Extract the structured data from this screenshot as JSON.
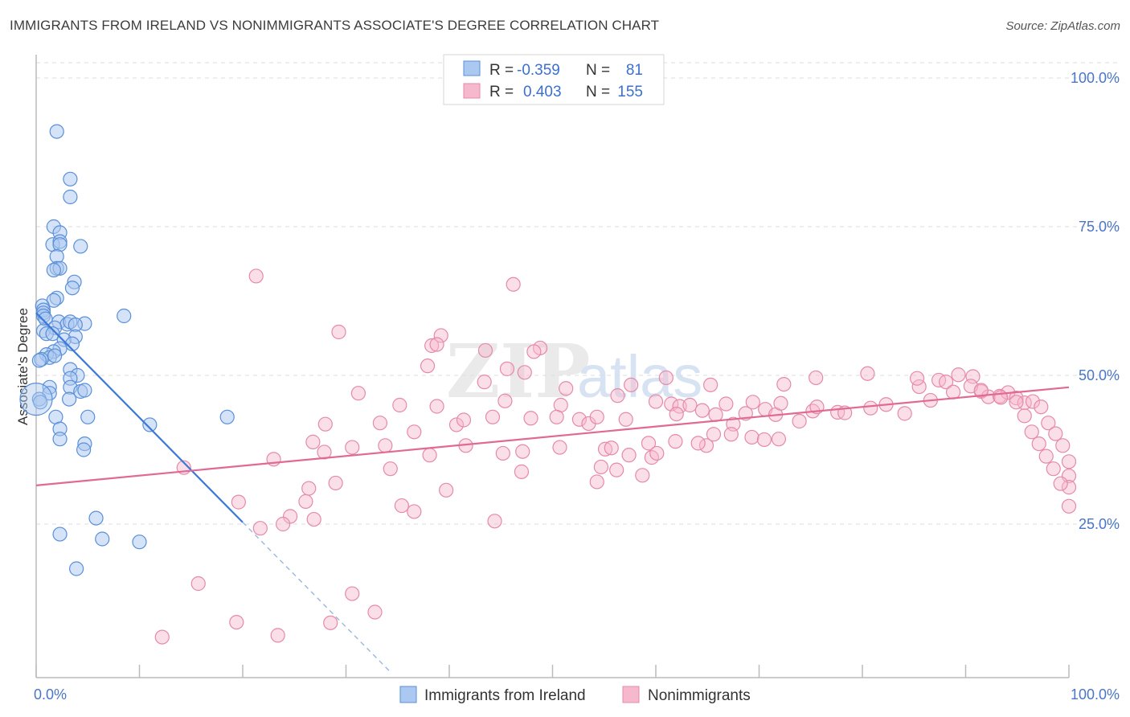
{
  "header": {
    "title": "IMMIGRANTS FROM IRELAND VS NONIMMIGRANTS ASSOCIATE'S DEGREE CORRELATION CHART",
    "source": "Source: ZipAtlas.com"
  },
  "watermark": {
    "zip": "ZIP",
    "atlas": "atlas"
  },
  "colors": {
    "blue_fill": "#aac8f0",
    "blue_stroke": "#5a8fd8",
    "blue_line": "#3b78d8",
    "pink_fill": "#f6b8cc",
    "pink_stroke": "#e58aa8",
    "pink_line": "#e06a93",
    "tick_color": "#4a76c8",
    "grid": "#dddddd"
  },
  "stats_box": {
    "rows": [
      {
        "r_label": "R =",
        "r_value": "-0.359",
        "n_label": "N =",
        "n_value": "81"
      },
      {
        "r_label": "R =",
        "r_value": "0.403",
        "n_label": "N =",
        "n_value": "155"
      }
    ]
  },
  "chart_data": {
    "type": "scatter",
    "title": "IMMIGRANTS FROM IRELAND VS NONIMMIGRANTS ASSOCIATE'S DEGREE CORRELATION CHART",
    "xlabel": "",
    "ylabel": "Associate's Degree",
    "xlim": [
      0,
      100
    ],
    "ylim": [
      0,
      100
    ],
    "x_tick_labels": [
      "0.0%",
      "100.0%"
    ],
    "y_ticks": [
      25,
      50,
      75,
      100
    ],
    "y_tick_labels": [
      "25.0%",
      "50.0%",
      "75.0%",
      "100.0%"
    ],
    "grid": "horizontal dashed",
    "legend_position": "bottom-center",
    "series": [
      {
        "name": "Immigrants from Ireland",
        "r": -0.359,
        "n": 81,
        "trend": {
          "x0": 0,
          "y0": 60.5,
          "x1": 20,
          "y1": 25.3,
          "dashed_to_x": 34.3
        },
        "points": [
          [
            2,
            91
          ],
          [
            3.3,
            83
          ],
          [
            3.3,
            80
          ],
          [
            1.7,
            75
          ],
          [
            2.3,
            74
          ],
          [
            1.6,
            72
          ],
          [
            2.3,
            72.5
          ],
          [
            2.3,
            72
          ],
          [
            4.3,
            71.7
          ],
          [
            2,
            70
          ],
          [
            2,
            68
          ],
          [
            2.3,
            68
          ],
          [
            1.7,
            67.7
          ],
          [
            3.7,
            65.7
          ],
          [
            3.5,
            64.7
          ],
          [
            2,
            63
          ],
          [
            1.7,
            62.6
          ],
          [
            0.6,
            61.7
          ],
          [
            0.7,
            61
          ],
          [
            0.7,
            60.5
          ],
          [
            0.7,
            60
          ],
          [
            0.9,
            59.5
          ],
          [
            2.2,
            59
          ],
          [
            3,
            58.6
          ],
          [
            3.3,
            59
          ],
          [
            4.7,
            58.7
          ],
          [
            3.8,
            58.5
          ],
          [
            1.8,
            58
          ],
          [
            0.7,
            57.5
          ],
          [
            1,
            57
          ],
          [
            1.6,
            57
          ],
          [
            3.8,
            56.5
          ],
          [
            2.7,
            56
          ],
          [
            3.5,
            55.3
          ],
          [
            2.3,
            54.5
          ],
          [
            1.7,
            54
          ],
          [
            1,
            53.5
          ],
          [
            1.3,
            53
          ],
          [
            0.5,
            52.7
          ],
          [
            1.8,
            53.3
          ],
          [
            0.3,
            52.5
          ],
          [
            3.3,
            51
          ],
          [
            4,
            50
          ],
          [
            3.3,
            49.5
          ],
          [
            1.3,
            48
          ],
          [
            1.3,
            47
          ],
          [
            3.3,
            48
          ],
          [
            4.3,
            47.3
          ],
          [
            4.7,
            47.5
          ],
          [
            3.2,
            46
          ],
          [
            0.3,
            46
          ],
          [
            0.4,
            45.5
          ],
          [
            1.9,
            43
          ],
          [
            5,
            43
          ],
          [
            2.3,
            41
          ],
          [
            2.3,
            39.3
          ],
          [
            4.7,
            38.5
          ],
          [
            4.6,
            37.5
          ],
          [
            11,
            41.7
          ],
          [
            18.5,
            43
          ],
          [
            8.5,
            60
          ],
          [
            5.8,
            26
          ],
          [
            2.3,
            23.3
          ],
          [
            6.4,
            22.5
          ],
          [
            10,
            22
          ],
          [
            3.9,
            17.5
          ]
        ]
      },
      {
        "name": "Nonimmigrants",
        "r": 0.403,
        "n": 155,
        "trend": {
          "x0": 0,
          "y0": 31.5,
          "x1": 100,
          "y1": 48
        },
        "points": [
          [
            21.3,
            66.7
          ],
          [
            46.2,
            65.3
          ],
          [
            29.3,
            57.3
          ],
          [
            39.2,
            56.7
          ],
          [
            38.3,
            55
          ],
          [
            43.5,
            54.2
          ],
          [
            48.8,
            54.6
          ],
          [
            48.2,
            54
          ],
          [
            37.9,
            51.6
          ],
          [
            45.6,
            51.1
          ],
          [
            47.3,
            50.5
          ],
          [
            43.4,
            48.9
          ],
          [
            31.2,
            47
          ],
          [
            35.2,
            45
          ],
          [
            38.8,
            44.8
          ],
          [
            45.4,
            45.7
          ],
          [
            50.8,
            45
          ],
          [
            51.3,
            47.8
          ],
          [
            57.6,
            48.4
          ],
          [
            56.3,
            46.6
          ],
          [
            28,
            41.8
          ],
          [
            33.3,
            42
          ],
          [
            36.6,
            40.5
          ],
          [
            40.7,
            41.7
          ],
          [
            41.4,
            42.5
          ],
          [
            44.2,
            43
          ],
          [
            47.9,
            42.8
          ],
          [
            50.4,
            43
          ],
          [
            52.6,
            42.6
          ],
          [
            53.5,
            41.9
          ],
          [
            54.3,
            43
          ],
          [
            57.1,
            42.6
          ],
          [
            60,
            45.6
          ],
          [
            61.5,
            45.2
          ],
          [
            62.3,
            44.8
          ],
          [
            63.3,
            45
          ],
          [
            62,
            43.5
          ],
          [
            64.5,
            44.1
          ],
          [
            65.8,
            43.4
          ],
          [
            67.5,
            41.8
          ],
          [
            68.7,
            43.6
          ],
          [
            70.6,
            44.3
          ],
          [
            71.6,
            43.4
          ],
          [
            72.1,
            45.3
          ],
          [
            73.9,
            42.3
          ],
          [
            75.2,
            44
          ],
          [
            75.6,
            44.7
          ],
          [
            77.6,
            43.8
          ],
          [
            78.3,
            43.7
          ],
          [
            80.8,
            44.5
          ],
          [
            82.3,
            45.1
          ],
          [
            84.1,
            43.6
          ],
          [
            85.5,
            48.1
          ],
          [
            86.6,
            45.8
          ],
          [
            87.4,
            49.2
          ],
          [
            88.1,
            48.9
          ],
          [
            88.8,
            47.2
          ],
          [
            90.7,
            49.8
          ],
          [
            91.5,
            47.3
          ],
          [
            92.2,
            46.4
          ],
          [
            93.3,
            46.5
          ],
          [
            94.1,
            47.1
          ],
          [
            94.9,
            46.2
          ],
          [
            95.7,
            45.4
          ],
          [
            96.5,
            45.6
          ],
          [
            97.3,
            44.7
          ],
          [
            98,
            42
          ],
          [
            98.7,
            40.2
          ],
          [
            99.4,
            38.2
          ],
          [
            100,
            35.5
          ],
          [
            100,
            33.1
          ],
          [
            100,
            31.2
          ],
          [
            100,
            28
          ],
          [
            94.9,
            45.5
          ],
          [
            95.7,
            43.2
          ],
          [
            96.4,
            40.5
          ],
          [
            97.1,
            38.5
          ],
          [
            97.8,
            36.4
          ],
          [
            98.5,
            34.3
          ],
          [
            99.2,
            31.8
          ],
          [
            80.5,
            50.3
          ],
          [
            85.3,
            49.5
          ],
          [
            89.3,
            50.1
          ],
          [
            90.5,
            48.2
          ],
          [
            91.5,
            47.5
          ],
          [
            93.4,
            46.3
          ],
          [
            75.5,
            49.6
          ],
          [
            72.4,
            48.5
          ],
          [
            66.8,
            45.2
          ],
          [
            69.4,
            45.5
          ],
          [
            61,
            49.6
          ],
          [
            59.3,
            38.6
          ],
          [
            61.9,
            38.9
          ],
          [
            64.9,
            38.2
          ],
          [
            65.6,
            40.1
          ],
          [
            67.3,
            40.1
          ],
          [
            69.3,
            39.6
          ],
          [
            70.5,
            39.2
          ],
          [
            71.9,
            39.3
          ],
          [
            65.3,
            48.4
          ],
          [
            26.8,
            38.8
          ],
          [
            27.9,
            37.1
          ],
          [
            30.6,
            37.9
          ],
          [
            33.8,
            38.2
          ],
          [
            38.1,
            36.6
          ],
          [
            41.6,
            38.2
          ],
          [
            45.2,
            36.9
          ],
          [
            47.1,
            37.2
          ],
          [
            50.7,
            37.9
          ],
          [
            55.1,
            37.6
          ],
          [
            57.4,
            36.6
          ],
          [
            59.6,
            36.2
          ],
          [
            60.1,
            36.9
          ],
          [
            55.7,
            37.8
          ],
          [
            64.1,
            38.6
          ],
          [
            14.3,
            34.5
          ],
          [
            23,
            35.9
          ],
          [
            26.4,
            31
          ],
          [
            29,
            31.9
          ],
          [
            34.3,
            34.3
          ],
          [
            39.7,
            30.7
          ],
          [
            47,
            33.8
          ],
          [
            54.7,
            34.6
          ],
          [
            56.2,
            34.1
          ],
          [
            54.3,
            32.1
          ],
          [
            58.7,
            33.2
          ],
          [
            19.6,
            28.7
          ],
          [
            26.1,
            28.8
          ],
          [
            35.4,
            28.1
          ],
          [
            36.6,
            27.1
          ],
          [
            24.6,
            26.3
          ],
          [
            23.9,
            25
          ],
          [
            21.7,
            24.3
          ],
          [
            26.9,
            25.8
          ],
          [
            44.4,
            25.5
          ],
          [
            15.7,
            15
          ],
          [
            38.8,
            55.2
          ],
          [
            28.5,
            8.4
          ],
          [
            19.4,
            8.5
          ],
          [
            12.2,
            6
          ],
          [
            23.4,
            6.3
          ],
          [
            30.6,
            13.3
          ],
          [
            32.8,
            10.2
          ]
        ]
      }
    ]
  }
}
